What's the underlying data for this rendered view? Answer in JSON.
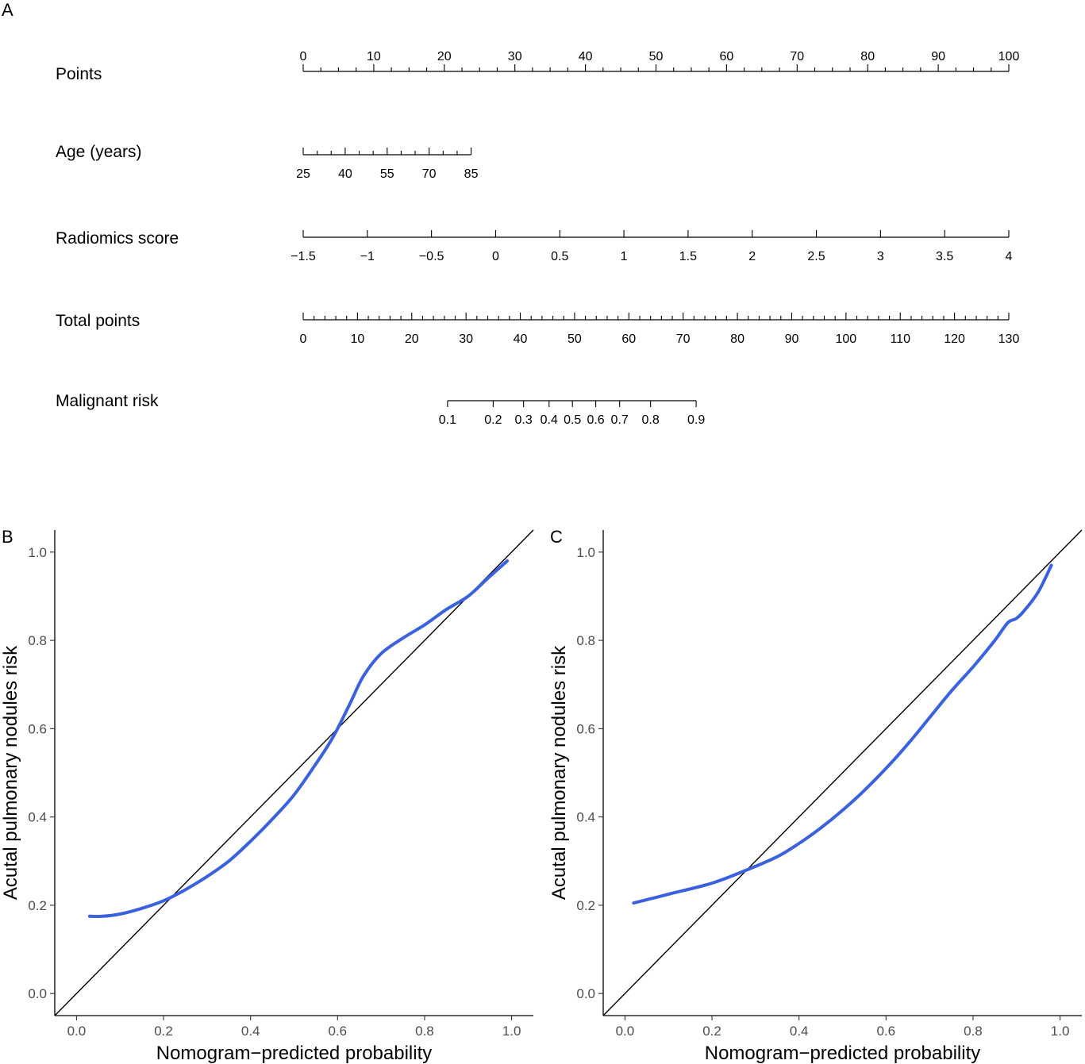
{
  "colors": {
    "curve": "#3a62e0",
    "ideal": "#000000",
    "tick_label": "#4d4d4d"
  },
  "panels": {
    "a": "A",
    "b": "B",
    "c": "C"
  },
  "chart_data": [
    {
      "type": "nomogram",
      "panel": "A",
      "rows": [
        {
          "label": "Points",
          "min": 0,
          "max": 100,
          "labels_above": true,
          "major_ticks": [
            0,
            10,
            20,
            30,
            40,
            50,
            60,
            70,
            80,
            90,
            100
          ],
          "tick_labels": [
            "0",
            "10",
            "20",
            "30",
            "40",
            "50",
            "60",
            "70",
            "80",
            "90",
            "100"
          ],
          "minor_step": 2.5,
          "points_min": 0,
          "points_max": 100
        },
        {
          "label": "Age (years)",
          "min": 25,
          "max": 85,
          "labels_above": false,
          "major_ticks": [
            25,
            40,
            55,
            70,
            85
          ],
          "tick_labels": [
            "25",
            "40",
            "55",
            "70",
            "85"
          ],
          "minor_step": 5,
          "points_min": 0,
          "points_max": 23.8
        },
        {
          "label": "Radiomics score",
          "min": -1.5,
          "max": 4,
          "labels_above": false,
          "major_ticks": [
            -1.5,
            -1,
            -0.5,
            0,
            0.5,
            1,
            1.5,
            2,
            2.5,
            3,
            3.5,
            4
          ],
          "tick_labels": [
            "−1.5",
            "−1",
            "−0.5",
            "0",
            "0.5",
            "1",
            "1.5",
            "2",
            "2.5",
            "3",
            "3.5",
            "4"
          ],
          "minor_step": 0,
          "points_min": 0,
          "points_max": 100
        },
        {
          "label": "Total points",
          "min": 0,
          "max": 130,
          "labels_above": false,
          "major_ticks": [
            0,
            10,
            20,
            30,
            40,
            50,
            60,
            70,
            80,
            90,
            100,
            110,
            120,
            130
          ],
          "tick_labels": [
            "0",
            "10",
            "20",
            "30",
            "40",
            "50",
            "60",
            "70",
            "80",
            "90",
            "100",
            "110",
            "120",
            "130"
          ],
          "minor_step": 2,
          "points_min": 0,
          "points_max": 100
        },
        {
          "label": "Malignant risk",
          "labels_above": false,
          "risk_total_points": [
            26.6,
            35.0,
            40.6,
            45.3,
            49.6,
            53.9,
            58.3,
            64.0,
            72.4
          ],
          "tick_labels": [
            "0.1",
            "0.2",
            "0.3",
            "0.4",
            "0.5",
            "0.6",
            "0.7",
            "0.8",
            "0.9"
          ],
          "total_min": 0,
          "total_max": 130
        }
      ]
    },
    {
      "type": "line",
      "panel": "B",
      "xlabel": "Nomogram−predicted probability",
      "ylabel": "Acutal pulmonary nodules risk",
      "xlim": [
        -0.05,
        1.05
      ],
      "ylim": [
        -0.05,
        1.05
      ],
      "xticks": [
        0.0,
        0.2,
        0.4,
        0.6,
        0.8,
        1.0
      ],
      "yticks": [
        0.0,
        0.2,
        0.4,
        0.6,
        0.8,
        1.0
      ],
      "xtick_labels": [
        "0.0",
        "0.2",
        "0.4",
        "0.6",
        "0.8",
        "1.0"
      ],
      "ytick_labels": [
        "0.0",
        "0.2",
        "0.4",
        "0.6",
        "0.8",
        "1.0"
      ],
      "ideal_line": [
        [
          -0.05,
          -0.05
        ],
        [
          1.05,
          1.05
        ]
      ],
      "series": [
        {
          "x": [
            0.03,
            0.06,
            0.1,
            0.15,
            0.2,
            0.25,
            0.3,
            0.35,
            0.4,
            0.45,
            0.5,
            0.55,
            0.58,
            0.6,
            0.63,
            0.66,
            0.7,
            0.75,
            0.8,
            0.85,
            0.9,
            0.95,
            0.99
          ],
          "y": [
            0.175,
            0.175,
            0.18,
            0.193,
            0.21,
            0.235,
            0.265,
            0.3,
            0.345,
            0.395,
            0.45,
            0.52,
            0.565,
            0.6,
            0.66,
            0.72,
            0.77,
            0.805,
            0.835,
            0.87,
            0.9,
            0.945,
            0.98
          ]
        }
      ]
    },
    {
      "type": "line",
      "panel": "C",
      "xlabel": "Nomogram−predicted probability",
      "ylabel": "Acutal pulmonary nodules risk",
      "xlim": [
        -0.05,
        1.05
      ],
      "ylim": [
        -0.05,
        1.05
      ],
      "xticks": [
        0.0,
        0.2,
        0.4,
        0.6,
        0.8,
        1.0
      ],
      "yticks": [
        0.0,
        0.2,
        0.4,
        0.6,
        0.8,
        1.0
      ],
      "xtick_labels": [
        "0.0",
        "0.2",
        "0.4",
        "0.6",
        "0.8",
        "1.0"
      ],
      "ytick_labels": [
        "0.0",
        "0.2",
        "0.4",
        "0.6",
        "0.8",
        "1.0"
      ],
      "ideal_line": [
        [
          -0.05,
          -0.05
        ],
        [
          1.05,
          1.05
        ]
      ],
      "series": [
        {
          "x": [
            0.02,
            0.1,
            0.2,
            0.28,
            0.35,
            0.4,
            0.45,
            0.5,
            0.55,
            0.6,
            0.65,
            0.7,
            0.75,
            0.8,
            0.85,
            0.88,
            0.9,
            0.92,
            0.95,
            0.98
          ],
          "y": [
            0.205,
            0.225,
            0.25,
            0.28,
            0.31,
            0.34,
            0.375,
            0.415,
            0.46,
            0.51,
            0.565,
            0.625,
            0.685,
            0.74,
            0.8,
            0.84,
            0.85,
            0.87,
            0.91,
            0.97
          ]
        }
      ]
    }
  ]
}
